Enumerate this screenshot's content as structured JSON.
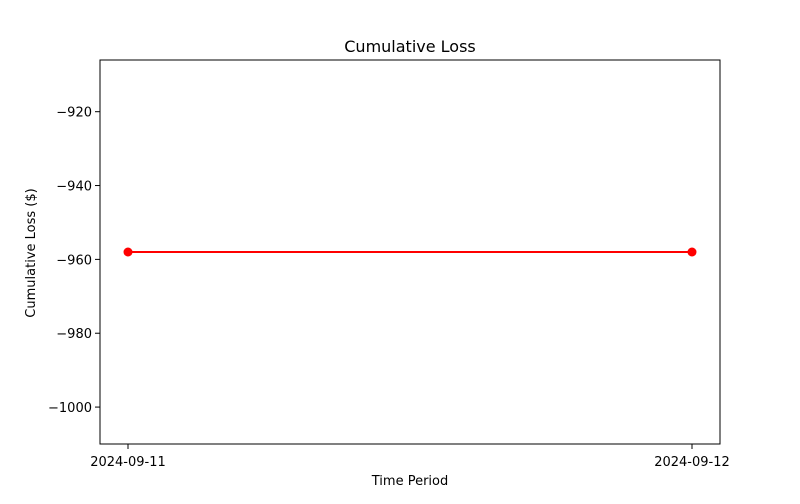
{
  "chart_data": {
    "type": "line",
    "title": "Cumulative Loss",
    "xlabel": "Time Period",
    "ylabel": "Cumulative Loss ($)",
    "x": [
      "2024-09-11",
      "2024-09-12"
    ],
    "series": [
      {
        "values": [
          -958,
          -958
        ],
        "color": "#ff0000",
        "marker": "circle"
      }
    ],
    "ylim": [
      -1010,
      -906
    ],
    "yticks": [
      -920,
      -940,
      -960,
      -980,
      -1000
    ],
    "ytick_labels": [
      "−920",
      "−940",
      "−960",
      "−980",
      "−1000"
    ],
    "grid": false,
    "legend": false
  }
}
